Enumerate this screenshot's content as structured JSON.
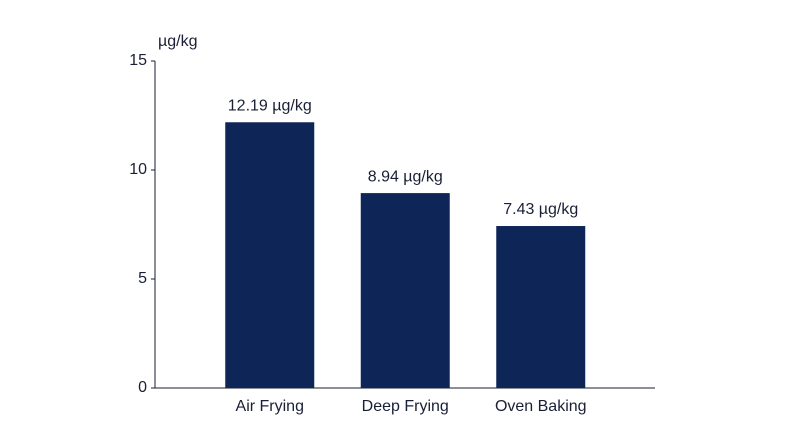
{
  "chart_data": {
    "type": "bar",
    "y_label": "µg/kg",
    "categories": [
      "Air Frying",
      "Deep Frying",
      "Oven Baking"
    ],
    "values": [
      12.19,
      8.94,
      7.43
    ],
    "value_labels": [
      "12.19 µg/kg",
      "8.94 µg/kg",
      "7.43 µg/kg"
    ],
    "color": "#0d2657",
    "ylim": [
      0,
      15
    ],
    "yticks": [
      0,
      5,
      10,
      15
    ],
    "grid": false
  }
}
